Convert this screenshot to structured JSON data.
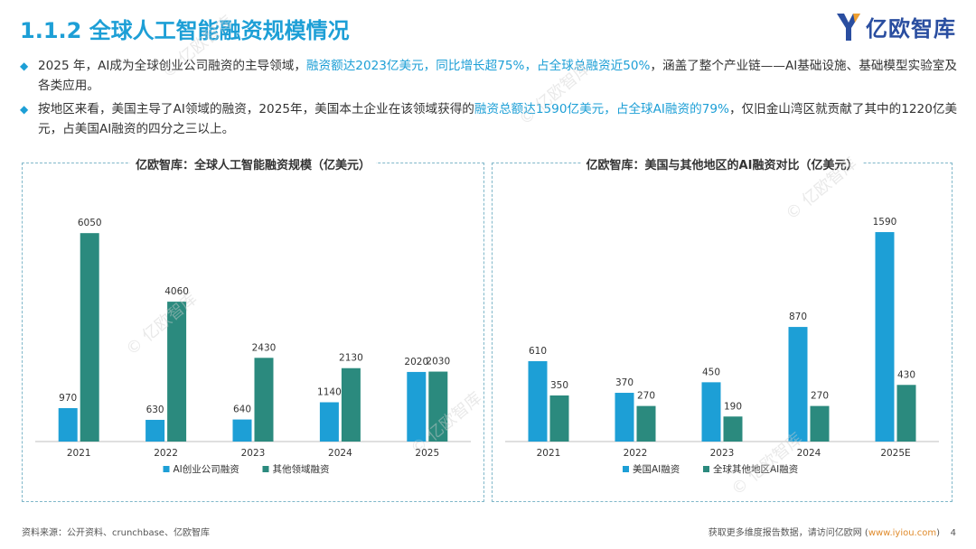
{
  "page": {
    "title": "1.1.2 全球人工智能融资规模情况",
    "logo_text": "亿欧智库",
    "watermark_text": "© 亿欧智库",
    "bullets": [
      {
        "parts": [
          {
            "text": "2025 年，AI成为全球创业公司融资的主导领域，",
            "hl": false
          },
          {
            "text": "融资额达2023亿美元，同比增长超75%，占全球总融资近50%",
            "hl": true
          },
          {
            "text": "，涵盖了整个产业链——AI基础设施、基础模型实验室及各类应用。",
            "hl": false
          }
        ]
      },
      {
        "parts": [
          {
            "text": "按地区来看，美国主导了AI领域的融资，2025年，美国本土企业在该领域获得的",
            "hl": false
          },
          {
            "text": "融资总额达1590亿美元，占全球AI融资的79%",
            "hl": true
          },
          {
            "text": "，仅旧金山湾区就贡献了其中的1220亿美元，占美国AI融资的四分之三以上。",
            "hl": false
          }
        ]
      }
    ],
    "footer_source": "资料来源：公开资料、crunchbase、亿欧智库",
    "footer_more_prefix": "获取更多维度报告数据，请访问亿欧网 (",
    "footer_more_link": "www.iyiou.com",
    "footer_more_suffix": ")",
    "page_number": "4"
  },
  "colors": {
    "accent": "#1d9fd6",
    "series_blue": "#1d9fd6",
    "series_teal": "#2b8a7e",
    "logo": "#2a4ea0"
  },
  "chart_data": [
    {
      "type": "bar",
      "title": "亿欧智库：全球人工智能融资规模（亿美元）",
      "categories": [
        "2021",
        "2022",
        "2023",
        "2024",
        "2025"
      ],
      "series": [
        {
          "name": "AI创业公司融资",
          "values": [
            970,
            630,
            640,
            1140,
            2020
          ]
        },
        {
          "name": "其他领域融资",
          "values": [
            6050,
            4060,
            2430,
            2130,
            2030
          ]
        }
      ],
      "ylim": [
        0,
        6500
      ],
      "legend": "bottom",
      "grid": false
    },
    {
      "type": "bar",
      "title": "亿欧智库：美国与其他地区的AI融资对比（亿美元）",
      "categories": [
        "2021",
        "2022",
        "2023",
        "2024",
        "2025E"
      ],
      "series": [
        {
          "name": "美国AI融资",
          "values": [
            610,
            370,
            450,
            870,
            1590
          ]
        },
        {
          "name": "全球其他地区AI融资",
          "values": [
            350,
            270,
            190,
            270,
            430
          ]
        }
      ],
      "ylim": [
        0,
        1700
      ],
      "legend": "bottom",
      "grid": false
    }
  ]
}
